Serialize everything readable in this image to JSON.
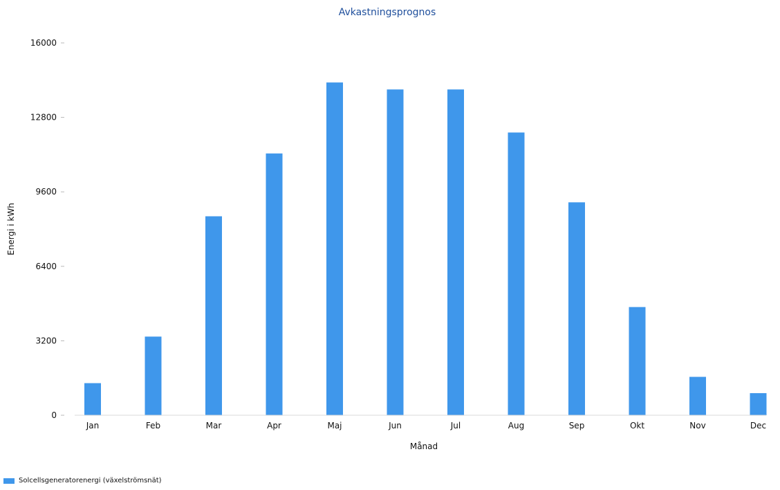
{
  "chart_data": {
    "type": "bar",
    "title": "Avkastningsprognos",
    "xlabel": "Månad",
    "ylabel": "Energi i kWh",
    "categories": [
      "Jan",
      "Feb",
      "Mar",
      "Apr",
      "Maj",
      "Jun",
      "Jul",
      "Aug",
      "Sep",
      "Okt",
      "Nov",
      "Dec"
    ],
    "series": [
      {
        "name": "Solcellsgeneratorenergi (växelströmsnät)",
        "values": [
          1380,
          3380,
          8550,
          11250,
          14300,
          14000,
          14000,
          12150,
          9150,
          4650,
          1650,
          950
        ],
        "color": "#3f97eb"
      }
    ],
    "ylim": [
      0,
      16000
    ],
    "yticks": [
      0,
      3200,
      6400,
      9600,
      12800,
      16000
    ],
    "grid": false,
    "legend_position": "bottom-left"
  }
}
